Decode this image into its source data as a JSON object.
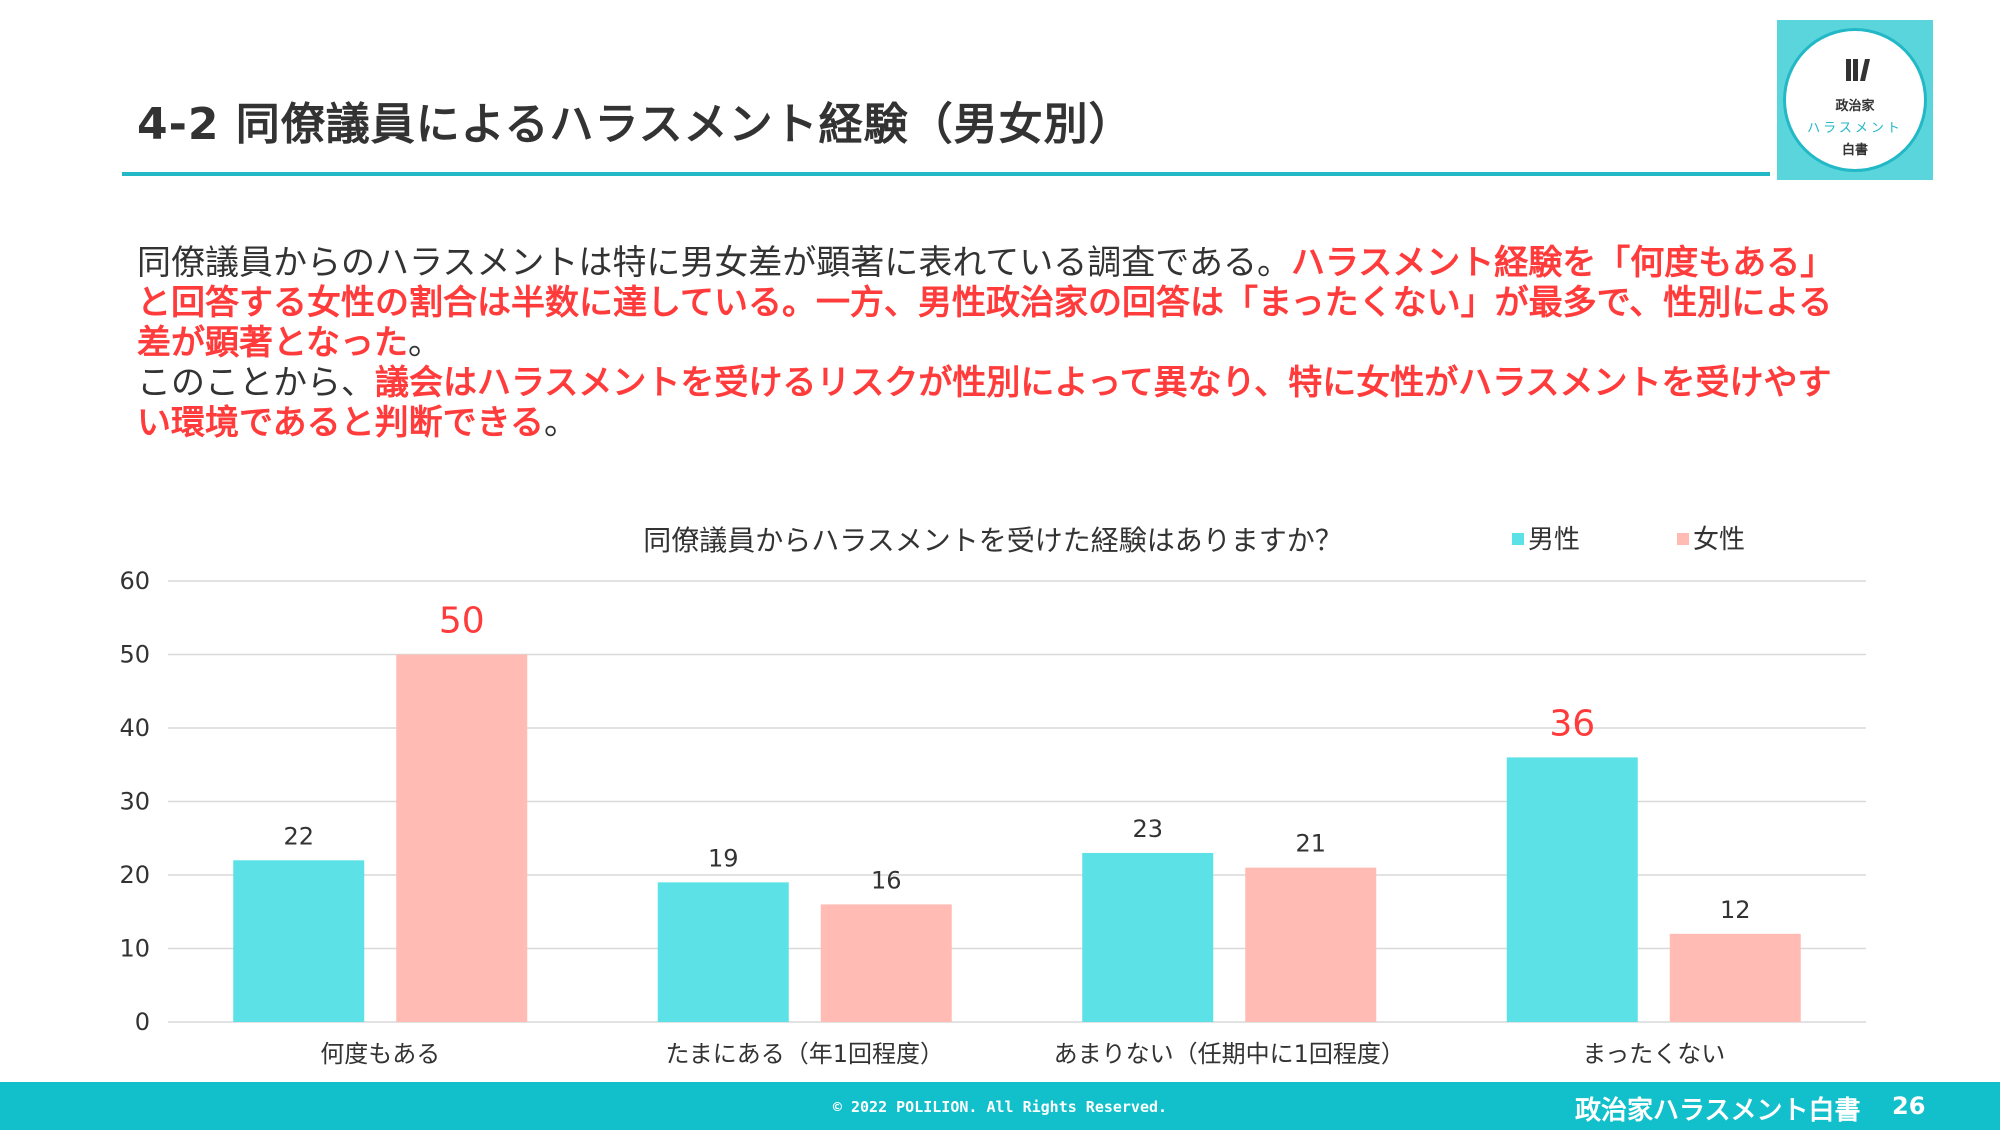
{
  "slide": {
    "title": "4-2 同僚議員によるハラスメント経験（男女別）"
  },
  "logo": {
    "line1": "政治家",
    "line2": "ハラスメント",
    "line3": "白書"
  },
  "body": {
    "p1_plain": "同僚議員からのハラスメントは特に男女差が顕著に表れている調査である。",
    "p1_highlight": "ハラスメント経験を「何度もある」と回答する女性の割合は半数に達している。一方、男性政治家の回答は「まったくない」が最多で、性別による差が顕著となった",
    "p1_end": "。",
    "p2_plain": "このことから、",
    "p2_highlight": "議会はハラスメントを受けるリスクが性別によって異なり、特に女性がハラスメントを受けやすい環境であると判断できる",
    "p2_end": "。"
  },
  "chart_data": {
    "type": "bar",
    "title": "同僚議員からハラスメントを受けた経験はありますか？",
    "categories": [
      "何度もある",
      "たまにある（年1回程度）",
      "あまりない（任期中に1回程度）",
      "まったくない"
    ],
    "series": [
      {
        "name": "男性",
        "color": "#5ce1e6",
        "values": [
          22,
          19,
          23,
          36
        ]
      },
      {
        "name": "女性",
        "color": "#ffbbb4",
        "values": [
          50,
          16,
          21,
          12
        ]
      }
    ],
    "highlighted": [
      {
        "series": 1,
        "index": 0
      },
      {
        "series": 0,
        "index": 3
      }
    ],
    "highlight_color": "#ff3b3b",
    "ylim": [
      0,
      60
    ],
    "yticks": [
      0,
      10,
      20,
      30,
      40,
      50,
      60
    ],
    "legend_position": "top-right",
    "grid": true,
    "xlabel": "",
    "ylabel": ""
  },
  "footer": {
    "copyright": "© 2022 POLILION. All Rights Reserved.",
    "name": "政治家ハラスメント白書",
    "page": "26"
  }
}
